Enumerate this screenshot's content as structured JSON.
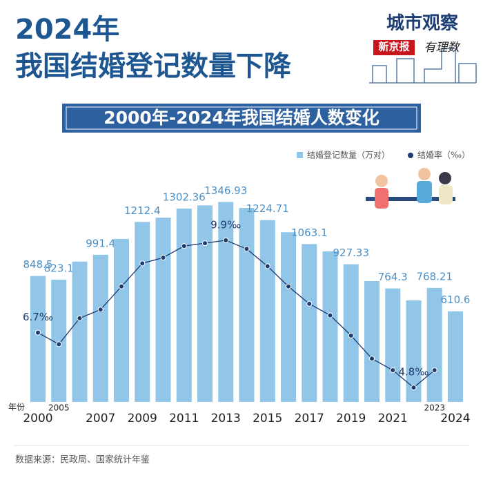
{
  "title": [
    "2024年",
    "我国结婚登记数量下降"
  ],
  "brand": {
    "name": "城市观察",
    "paper": "新京报",
    "column": "有理数"
  },
  "source": "数据来源：民政局、国家统计年鉴",
  "chart_data": {
    "type": "bar",
    "subtitle": "2000年-2024年我国结婚人数变化",
    "x_label": "年份",
    "categories": [
      "2000",
      "2005",
      null,
      "2007",
      null,
      "2009",
      null,
      "2011",
      null,
      "2013",
      null,
      "2015",
      null,
      "2017",
      null,
      "2019",
      null,
      "2021",
      null,
      "2023",
      "2024"
    ],
    "ylim": [
      0,
      1400
    ],
    "y2lim": [
      4.3,
      11.5
    ],
    "series": [
      {
        "name": "结婚登记数量（万对）",
        "color": "#92c6e8",
        "values": [
          848.5,
          823.1,
          945,
          991.4,
          1098,
          1212.4,
          1241,
          1302.36,
          1324,
          1346.93,
          1307,
          1224.71,
          1143,
          1063.1,
          1014,
          927.33,
          814,
          764.3,
          684,
          768.21,
          610.6
        ],
        "value_labels": [
          "848.5",
          "823.1",
          null,
          "991.4",
          null,
          "1212.4",
          null,
          "1302.36",
          null,
          "1346.93",
          null,
          "1224.71",
          null,
          "1063.1",
          null,
          "927.33",
          null,
          "764.3",
          null,
          "768.21",
          "610.6"
        ]
      },
      {
        "name": "结婚率（‰）",
        "color": "#1c3a6e",
        "axis": "y2",
        "values": [
          6.7,
          6.3,
          7.2,
          7.5,
          8.3,
          9.1,
          9.3,
          9.7,
          9.8,
          9.9,
          9.6,
          9.0,
          8.3,
          7.7,
          7.3,
          6.6,
          5.8,
          5.4,
          4.8,
          5.4,
          null
        ],
        "value_labels": [
          "6.7‰",
          null,
          null,
          null,
          null,
          null,
          null,
          null,
          null,
          "9.9‰",
          null,
          null,
          null,
          null,
          null,
          null,
          null,
          null,
          "4.8‰",
          null,
          null
        ]
      }
    ]
  }
}
